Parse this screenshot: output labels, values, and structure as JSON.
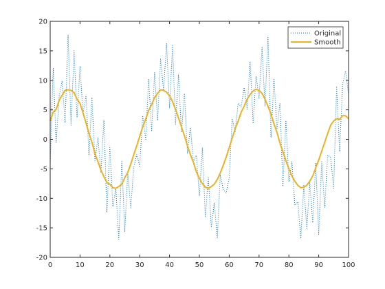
{
  "chart_data": {
    "type": "line",
    "xlim": [
      0,
      100
    ],
    "ylim": [
      -20,
      20
    ],
    "xticks": [
      0,
      10,
      20,
      30,
      40,
      50,
      60,
      70,
      80,
      90,
      100
    ],
    "yticks": [
      -20,
      -15,
      -10,
      -5,
      0,
      5,
      10,
      15,
      20
    ],
    "grid": false,
    "legend_position": "top-right",
    "series": [
      {
        "name": "Original",
        "style": "dotted",
        "color": "#0072BD",
        "x": [
          0,
          1,
          2,
          3,
          4,
          5,
          6,
          7,
          8,
          9,
          10,
          11,
          12,
          13,
          14,
          15,
          16,
          17,
          18,
          19,
          20,
          21,
          22,
          23,
          24,
          25,
          26,
          27,
          28,
          29,
          30,
          31,
          32,
          33,
          34,
          35,
          36,
          37,
          38,
          39,
          40,
          41,
          42,
          43,
          44,
          45,
          46,
          47,
          48,
          49,
          50,
          51,
          52,
          53,
          54,
          55,
          56,
          57,
          58,
          59,
          60,
          61,
          62,
          63,
          64,
          65,
          66,
          67,
          68,
          69,
          70,
          71,
          72,
          73,
          74,
          75,
          76,
          77,
          78,
          79,
          80,
          81,
          82,
          83,
          84,
          85,
          86,
          87,
          88,
          89,
          90,
          91,
          92,
          93,
          94,
          95,
          96,
          97,
          98,
          99,
          100
        ],
        "y": [
          -4.3,
          12.1,
          -0.6,
          7.3,
          9.9,
          2.8,
          17.7,
          2.4,
          15.0,
          3.7,
          12.4,
          4.3,
          7.4,
          -2.7,
          7.1,
          -3.6,
          0.3,
          -5.7,
          3.3,
          -12.3,
          -1.4,
          -11.4,
          -8.4,
          -17.0,
          -3.7,
          -15.7,
          -5.5,
          -11.6,
          -4.8,
          -2.6,
          -4.6,
          4.0,
          0.0,
          10.2,
          1.5,
          11.3,
          3.2,
          13.6,
          8.3,
          16.3,
          5.3,
          15.9,
          2.6,
          10.9,
          1.2,
          7.8,
          -2.4,
          2.0,
          -3.8,
          -2.7,
          -9.6,
          -1.4,
          -13.2,
          -6.4,
          -14.9,
          -10.8,
          -16.7,
          -6.0,
          -8.5,
          -9.1,
          -6.5,
          3.5,
          1.3,
          6.1,
          5.5,
          8.8,
          5.1,
          13.2,
          2.7,
          10.7,
          6.9,
          15.6,
          5.6,
          17.4,
          0.4,
          10.3,
          1.8,
          6.1,
          -8.0,
          3.2,
          -7.2,
          -3.8,
          -11.2,
          -10.6,
          -16.8,
          -7.8,
          -15.1,
          -7.4,
          -14.1,
          -4.0,
          -16.1,
          -3.8,
          -11.5,
          -2.7,
          -3.1,
          -8.3,
          9.0,
          -2.1,
          9.4,
          11.6,
          7.6
        ]
      },
      {
        "name": "Smooth",
        "style": "solid",
        "color": "#EDB120",
        "x": [
          0,
          1,
          2,
          3,
          4,
          5,
          6,
          7,
          8,
          9,
          10,
          11,
          12,
          13,
          14,
          15,
          16,
          17,
          18,
          19,
          20,
          21,
          22,
          23,
          24,
          25,
          26,
          27,
          28,
          29,
          30,
          31,
          32,
          33,
          34,
          35,
          36,
          37,
          38,
          39,
          40,
          41,
          42,
          43,
          44,
          45,
          46,
          47,
          48,
          49,
          50,
          51,
          52,
          53,
          54,
          55,
          56,
          57,
          58,
          59,
          60,
          61,
          62,
          63,
          64,
          65,
          66,
          67,
          68,
          69,
          70,
          71,
          72,
          73,
          74,
          75,
          76,
          77,
          78,
          79,
          80,
          81,
          82,
          83,
          84,
          85,
          86,
          87,
          88,
          89,
          90,
          91,
          92,
          93,
          94,
          95,
          96,
          97,
          98,
          99,
          100
        ],
        "y": [
          3.1,
          4.6,
          5.1,
          6.6,
          7.5,
          8.3,
          8.4,
          8.3,
          7.9,
          6.8,
          6.1,
          4.5,
          2.8,
          1.0,
          -0.5,
          -2.4,
          -3.8,
          -5.2,
          -6.3,
          -7.3,
          -7.6,
          -8.2,
          -8.3,
          -8.0,
          -7.6,
          -6.5,
          -5.6,
          -4.2,
          -2.6,
          -1.1,
          0.5,
          2.1,
          3.4,
          4.9,
          5.9,
          7.1,
          7.8,
          8.4,
          8.3,
          8.0,
          7.4,
          6.4,
          5.1,
          3.6,
          2.1,
          0.6,
          -1.1,
          -2.6,
          -3.9,
          -5.5,
          -6.6,
          -7.5,
          -8.1,
          -8.3,
          -8.0,
          -7.6,
          -6.8,
          -5.7,
          -4.4,
          -3.0,
          -1.4,
          0.2,
          1.8,
          3.1,
          4.6,
          5.6,
          6.8,
          7.6,
          8.2,
          8.5,
          8.3,
          7.8,
          6.8,
          5.6,
          4.3,
          2.6,
          1.2,
          -0.6,
          -2.1,
          -3.6,
          -5.0,
          -6.2,
          -7.1,
          -7.8,
          -8.2,
          -8.1,
          -7.8,
          -7.1,
          -6.2,
          -4.8,
          -3.5,
          -2.0,
          -0.5,
          1.0,
          2.4,
          3.1,
          3.5,
          3.4,
          4.0,
          4.0,
          3.5
        ]
      }
    ]
  }
}
